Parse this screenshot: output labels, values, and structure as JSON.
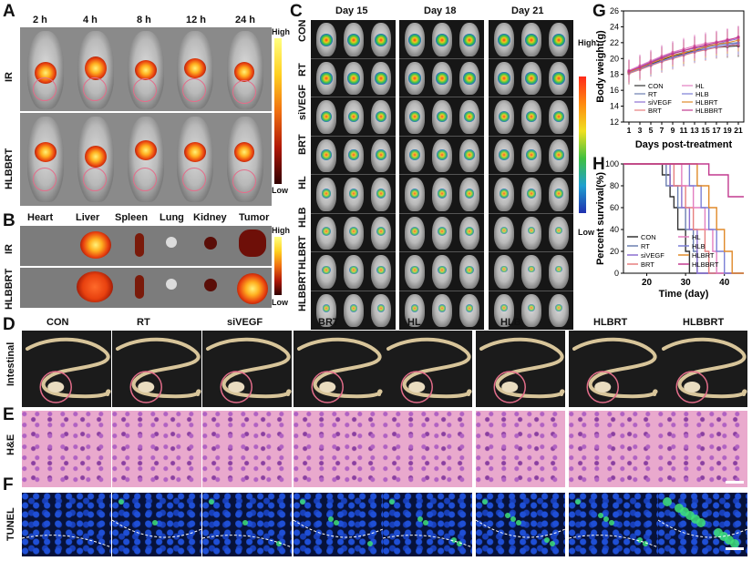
{
  "panels": {
    "A": {
      "letter": "A",
      "times": [
        "2 h",
        "4 h",
        "8 h",
        "12 h",
        "24 h"
      ],
      "rows": [
        "IR",
        "HLBBRT"
      ],
      "scale_high": "High",
      "scale_low": "Low"
    },
    "B": {
      "letter": "B",
      "organs": [
        "Heart",
        "Liver",
        "Spleen",
        "Lung",
        "Kidney",
        "Tumor"
      ],
      "rows": [
        "IR",
        "HLBBRT"
      ],
      "scale_high": "High",
      "scale_low": "Low"
    },
    "C": {
      "letter": "C",
      "days": [
        "Day 15",
        "Day 18",
        "Day 21"
      ],
      "groups": [
        "CON",
        "RT",
        "siVEGF",
        "BRT",
        "HL",
        "HLB",
        "HLBRT",
        "HLBBRT"
      ],
      "scale_high": "High",
      "scale_low": "Low"
    },
    "G": {
      "letter": "G"
    },
    "H": {
      "letter": "H"
    },
    "D": {
      "letter": "D",
      "row_label": "Intestinal",
      "groups": [
        "CON",
        "RT",
        "siVEGF",
        "BRT",
        "HL",
        "HLB",
        "HLBRT",
        "HLBBRT"
      ]
    },
    "E": {
      "letter": "E",
      "row_label": "H&E"
    },
    "F": {
      "letter": "F",
      "row_label": "TUNEL"
    }
  },
  "colors": {
    "CON": "#333333",
    "RT": "#6a7fb0",
    "siVEGF": "#8b6fd1",
    "BRT": "#e77f7f",
    "HL": "#e37ec0",
    "HLB": "#7b7fd6",
    "HLBRT": "#e08a2a",
    "HLBBRT": "#c23a8f"
  },
  "chart_data": [
    {
      "type": "line",
      "xlabel": "Days post-treatment",
      "ylabel": "Body weight(g)",
      "x": [
        1,
        3,
        5,
        7,
        9,
        11,
        13,
        15,
        17,
        19,
        21
      ],
      "xticks": [
        1,
        3,
        5,
        7,
        9,
        11,
        13,
        15,
        17,
        19,
        21
      ],
      "yticks": [
        12,
        14,
        16,
        18,
        20,
        22,
        24,
        26
      ],
      "ylim": [
        12,
        26
      ],
      "legend": "inside-bottom",
      "series": [
        {
          "name": "CON",
          "values": [
            18.2,
            18.8,
            19.3,
            19.8,
            20.3,
            20.6,
            21.0,
            21.2,
            21.4,
            21.5,
            21.6
          ]
        },
        {
          "name": "RT",
          "values": [
            18.3,
            18.9,
            19.5,
            20.0,
            20.4,
            20.8,
            21.1,
            21.4,
            21.7,
            21.9,
            22.0
          ]
        },
        {
          "name": "siVEGF",
          "values": [
            18.4,
            19.0,
            19.6,
            20.2,
            20.7,
            21.0,
            21.3,
            21.6,
            21.8,
            22.2,
            22.5
          ]
        },
        {
          "name": "BRT",
          "values": [
            18.1,
            18.6,
            19.1,
            19.6,
            20.0,
            20.4,
            20.8,
            21.1,
            21.4,
            21.6,
            21.8
          ]
        },
        {
          "name": "HL",
          "values": [
            18.5,
            19.1,
            19.7,
            20.3,
            20.8,
            21.2,
            21.6,
            21.9,
            22.1,
            22.4,
            22.6
          ]
        },
        {
          "name": "HLB",
          "values": [
            18.2,
            18.7,
            19.2,
            19.7,
            20.1,
            20.5,
            20.9,
            21.2,
            21.5,
            21.7,
            21.9
          ]
        },
        {
          "name": "HLBRT",
          "values": [
            18.3,
            18.8,
            19.4,
            19.9,
            20.4,
            20.7,
            21.1,
            21.5,
            21.8,
            22.0,
            22.3
          ]
        },
        {
          "name": "HLBBRT",
          "values": [
            18.4,
            18.9,
            19.5,
            20.1,
            20.6,
            21.0,
            21.4,
            21.7,
            22.0,
            22.3,
            22.7
          ]
        }
      ]
    },
    {
      "type": "line",
      "xlabel": "Time (day)",
      "ylabel": "Percent survival(%)",
      "xticks": [
        20,
        30,
        40
      ],
      "yticks": [
        0,
        20,
        40,
        60,
        80,
        100
      ],
      "xlim": [
        14,
        45
      ],
      "ylim": [
        0,
        100
      ],
      "legend": "inside-bottom-left",
      "series": [
        {
          "name": "CON",
          "steps": [
            [
              14,
              100
            ],
            [
              24,
              100
            ],
            [
              24,
              90
            ],
            [
              26,
              90
            ],
            [
              26,
              70
            ],
            [
              27,
              70
            ],
            [
              27,
              60
            ],
            [
              28,
              60
            ],
            [
              28,
              40
            ],
            [
              30,
              40
            ],
            [
              30,
              20
            ],
            [
              31,
              20
            ],
            [
              31,
              0
            ],
            [
              45,
              0
            ]
          ]
        },
        {
          "name": "RT",
          "steps": [
            [
              14,
              100
            ],
            [
              25,
              100
            ],
            [
              25,
              80
            ],
            [
              28,
              80
            ],
            [
              28,
              60
            ],
            [
              30,
              60
            ],
            [
              30,
              40
            ],
            [
              32,
              40
            ],
            [
              32,
              20
            ],
            [
              33,
              20
            ],
            [
              33,
              0
            ],
            [
              45,
              0
            ]
          ]
        },
        {
          "name": "siVEGF",
          "steps": [
            [
              14,
              100
            ],
            [
              26,
              100
            ],
            [
              26,
              80
            ],
            [
              29,
              80
            ],
            [
              29,
              60
            ],
            [
              31,
              60
            ],
            [
              31,
              40
            ],
            [
              33,
              40
            ],
            [
              33,
              0
            ],
            [
              45,
              0
            ]
          ]
        },
        {
          "name": "BRT",
          "steps": [
            [
              14,
              100
            ],
            [
              27,
              100
            ],
            [
              27,
              80
            ],
            [
              30,
              80
            ],
            [
              30,
              60
            ],
            [
              32,
              60
            ],
            [
              32,
              40
            ],
            [
              35,
              40
            ],
            [
              35,
              20
            ],
            [
              36,
              20
            ],
            [
              36,
              0
            ],
            [
              45,
              0
            ]
          ]
        },
        {
          "name": "HL",
          "steps": [
            [
              14,
              100
            ],
            [
              29,
              100
            ],
            [
              29,
              80
            ],
            [
              32,
              80
            ],
            [
              32,
              60
            ],
            [
              35,
              60
            ],
            [
              35,
              40
            ],
            [
              37,
              40
            ],
            [
              37,
              20
            ],
            [
              38,
              20
            ],
            [
              38,
              0
            ],
            [
              45,
              0
            ]
          ]
        },
        {
          "name": "HLB",
          "steps": [
            [
              14,
              100
            ],
            [
              31,
              100
            ],
            [
              31,
              80
            ],
            [
              34,
              80
            ],
            [
              34,
              60
            ],
            [
              36,
              60
            ],
            [
              36,
              40
            ],
            [
              38,
              40
            ],
            [
              38,
              20
            ],
            [
              40,
              20
            ],
            [
              40,
              0
            ],
            [
              45,
              0
            ]
          ]
        },
        {
          "name": "HLBRT",
          "steps": [
            [
              14,
              100
            ],
            [
              33,
              100
            ],
            [
              33,
              80
            ],
            [
              36,
              80
            ],
            [
              36,
              60
            ],
            [
              38,
              60
            ],
            [
              38,
              40
            ],
            [
              40,
              40
            ],
            [
              40,
              20
            ],
            [
              42,
              20
            ],
            [
              42,
              0
            ],
            [
              45,
              0
            ]
          ]
        },
        {
          "name": "HLBBRT",
          "steps": [
            [
              14,
              100
            ],
            [
              36,
              100
            ],
            [
              36,
              90
            ],
            [
              41,
              90
            ],
            [
              41,
              70
            ],
            [
              45,
              70
            ]
          ]
        }
      ]
    }
  ]
}
